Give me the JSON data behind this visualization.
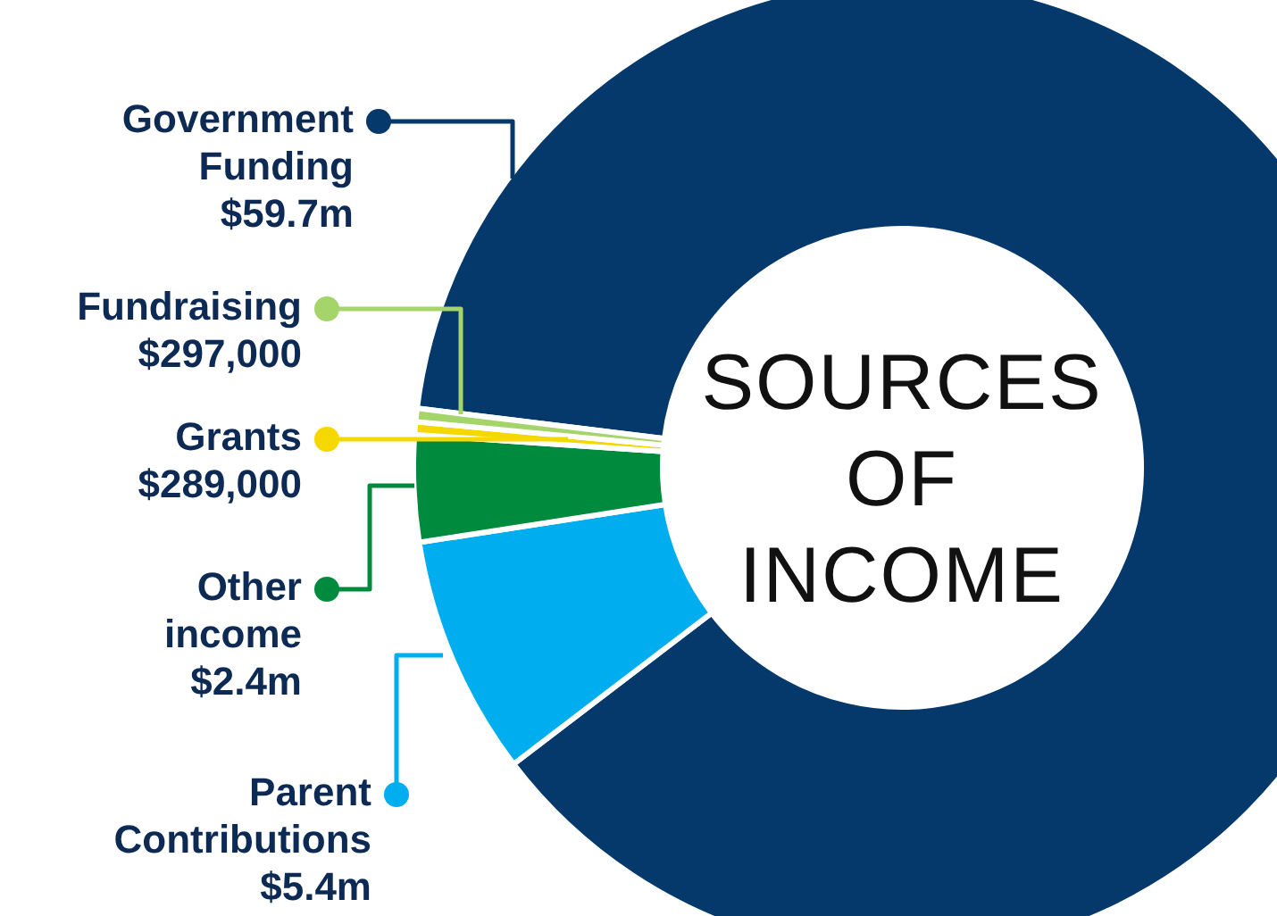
{
  "chart_data": {
    "type": "donut",
    "title": "SOURCES OF INCOME",
    "categories": [
      "Government Funding",
      "Parent Contributions",
      "Other income",
      "Grants",
      "Fundraising"
    ],
    "values": [
      59700000,
      5400000,
      2400000,
      289000,
      297000
    ],
    "value_labels": [
      "$59.7m",
      "$5.4m",
      "$2.4m",
      "$289,000",
      "$297,000"
    ],
    "colors": [
      "#05386b",
      "#00aeef",
      "#008a3e",
      "#f5d800",
      "#a5d46a"
    ],
    "legend": "left"
  }
}
